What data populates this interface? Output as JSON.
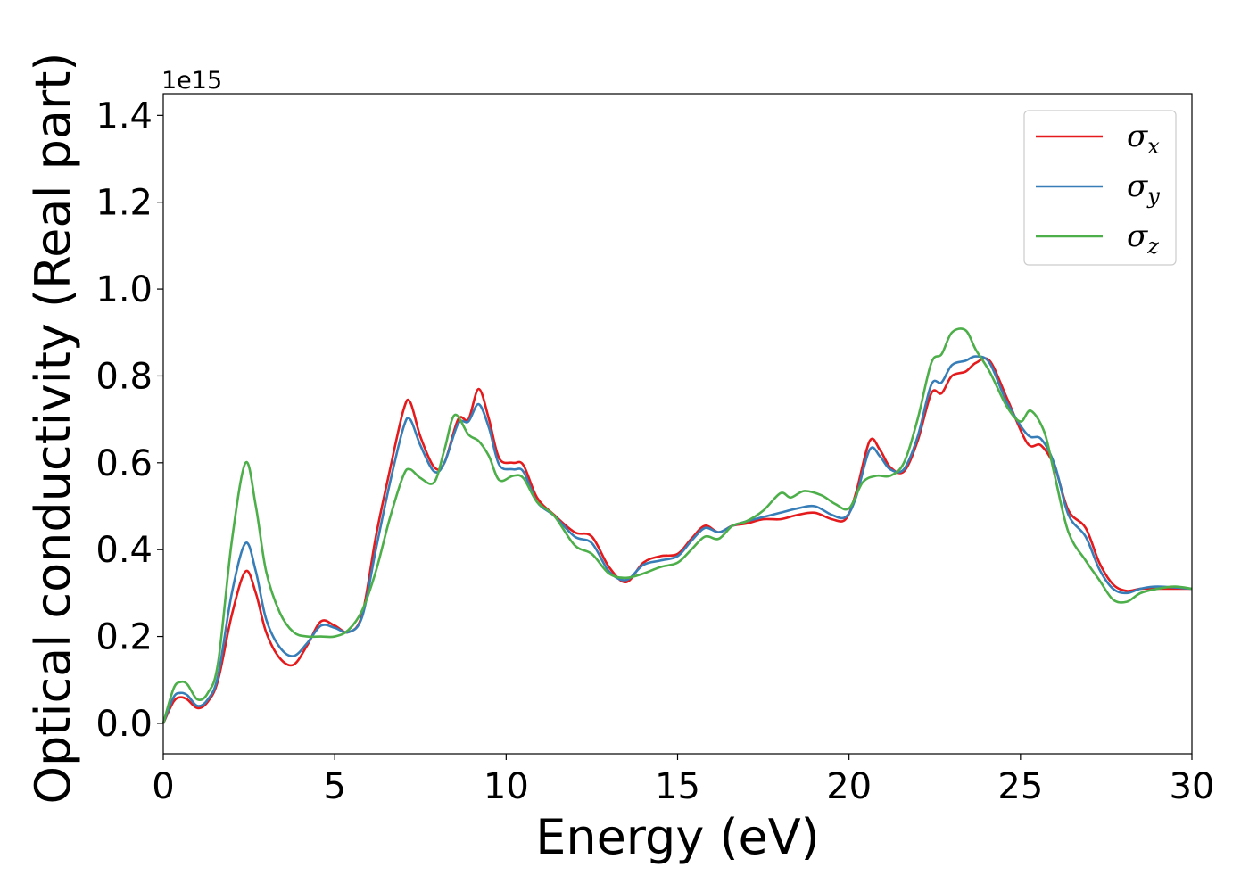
{
  "chart_data": {
    "type": "line",
    "title": "",
    "xlabel": "Energy (eV)",
    "ylabel": "Optical conductivity (Real part)",
    "y_offset_label": "1e15",
    "xlim": [
      0,
      30
    ],
    "ylim": [
      -0.07,
      1.45
    ],
    "xticks": [
      0,
      5,
      10,
      15,
      20,
      25,
      30
    ],
    "xtick_labels": [
      "0",
      "5",
      "10",
      "15",
      "20",
      "25",
      "30"
    ],
    "yticks": [
      0.0,
      0.2,
      0.4,
      0.6,
      0.8,
      1.0,
      1.2,
      1.4
    ],
    "ytick_labels": [
      "0.0",
      "0.2",
      "0.4",
      "0.6",
      "0.8",
      "1.0",
      "1.2",
      "1.4"
    ],
    "grid": false,
    "legend_position": "top-right",
    "series": [
      {
        "name_base": "σ",
        "name_sub": "x",
        "color": "#e41a1c",
        "points": [
          [
            0,
            0
          ],
          [
            0.3,
            0.05
          ],
          [
            0.5,
            0.06
          ],
          [
            0.7,
            0.055
          ],
          [
            1.0,
            0.035
          ],
          [
            1.3,
            0.05
          ],
          [
            1.6,
            0.1
          ],
          [
            2.0,
            0.25
          ],
          [
            2.4,
            0.35
          ],
          [
            2.7,
            0.3
          ],
          [
            3.0,
            0.21
          ],
          [
            3.4,
            0.15
          ],
          [
            3.8,
            0.135
          ],
          [
            4.2,
            0.18
          ],
          [
            4.6,
            0.235
          ],
          [
            5.0,
            0.225
          ],
          [
            5.4,
            0.21
          ],
          [
            5.8,
            0.25
          ],
          [
            6.2,
            0.43
          ],
          [
            6.6,
            0.58
          ],
          [
            7.0,
            0.72
          ],
          [
            7.2,
            0.74
          ],
          [
            7.5,
            0.66
          ],
          [
            7.9,
            0.59
          ],
          [
            8.2,
            0.6
          ],
          [
            8.6,
            0.7
          ],
          [
            8.9,
            0.7
          ],
          [
            9.2,
            0.77
          ],
          [
            9.5,
            0.7
          ],
          [
            9.8,
            0.61
          ],
          [
            10.2,
            0.6
          ],
          [
            10.5,
            0.595
          ],
          [
            10.9,
            0.52
          ],
          [
            11.4,
            0.48
          ],
          [
            12.0,
            0.44
          ],
          [
            12.5,
            0.43
          ],
          [
            13.0,
            0.36
          ],
          [
            13.5,
            0.325
          ],
          [
            14.0,
            0.37
          ],
          [
            14.5,
            0.385
          ],
          [
            15.0,
            0.39
          ],
          [
            15.4,
            0.425
          ],
          [
            15.8,
            0.455
          ],
          [
            16.2,
            0.44
          ],
          [
            16.6,
            0.455
          ],
          [
            17.0,
            0.46
          ],
          [
            17.5,
            0.47
          ],
          [
            18.0,
            0.47
          ],
          [
            18.5,
            0.48
          ],
          [
            19.0,
            0.485
          ],
          [
            19.5,
            0.47
          ],
          [
            19.9,
            0.47
          ],
          [
            20.2,
            0.53
          ],
          [
            20.6,
            0.65
          ],
          [
            20.9,
            0.63
          ],
          [
            21.2,
            0.59
          ],
          [
            21.6,
            0.58
          ],
          [
            22.0,
            0.65
          ],
          [
            22.4,
            0.76
          ],
          [
            22.7,
            0.76
          ],
          [
            23.0,
            0.8
          ],
          [
            23.4,
            0.81
          ],
          [
            23.7,
            0.83
          ],
          [
            24.1,
            0.835
          ],
          [
            24.6,
            0.75
          ],
          [
            25.2,
            0.645
          ],
          [
            25.6,
            0.64
          ],
          [
            26.0,
            0.59
          ],
          [
            26.4,
            0.49
          ],
          [
            26.9,
            0.45
          ],
          [
            27.3,
            0.37
          ],
          [
            27.7,
            0.32
          ],
          [
            28.1,
            0.305
          ],
          [
            28.5,
            0.31
          ],
          [
            29.0,
            0.31
          ],
          [
            30,
            0.31
          ]
        ]
      },
      {
        "name_base": "σ",
        "name_sub": "y",
        "color": "#377eb8",
        "points": [
          [
            0,
            0
          ],
          [
            0.3,
            0.06
          ],
          [
            0.5,
            0.07
          ],
          [
            0.7,
            0.065
          ],
          [
            1.0,
            0.04
          ],
          [
            1.3,
            0.055
          ],
          [
            1.6,
            0.11
          ],
          [
            2.0,
            0.3
          ],
          [
            2.4,
            0.415
          ],
          [
            2.7,
            0.35
          ],
          [
            3.0,
            0.24
          ],
          [
            3.4,
            0.175
          ],
          [
            3.8,
            0.155
          ],
          [
            4.2,
            0.185
          ],
          [
            4.6,
            0.225
          ],
          [
            5.0,
            0.22
          ],
          [
            5.4,
            0.21
          ],
          [
            5.8,
            0.245
          ],
          [
            6.2,
            0.4
          ],
          [
            6.6,
            0.55
          ],
          [
            7.0,
            0.68
          ],
          [
            7.2,
            0.7
          ],
          [
            7.5,
            0.64
          ],
          [
            7.9,
            0.58
          ],
          [
            8.2,
            0.6
          ],
          [
            8.6,
            0.69
          ],
          [
            8.9,
            0.695
          ],
          [
            9.2,
            0.735
          ],
          [
            9.5,
            0.68
          ],
          [
            9.8,
            0.595
          ],
          [
            10.2,
            0.585
          ],
          [
            10.5,
            0.58
          ],
          [
            10.9,
            0.51
          ],
          [
            11.4,
            0.478
          ],
          [
            12.0,
            0.43
          ],
          [
            12.5,
            0.415
          ],
          [
            13.0,
            0.35
          ],
          [
            13.5,
            0.33
          ],
          [
            14.0,
            0.365
          ],
          [
            14.5,
            0.375
          ],
          [
            15.0,
            0.385
          ],
          [
            15.4,
            0.42
          ],
          [
            15.8,
            0.45
          ],
          [
            16.2,
            0.44
          ],
          [
            16.6,
            0.455
          ],
          [
            17.0,
            0.465
          ],
          [
            17.5,
            0.475
          ],
          [
            18.0,
            0.485
          ],
          [
            18.5,
            0.495
          ],
          [
            19.0,
            0.5
          ],
          [
            19.5,
            0.48
          ],
          [
            19.9,
            0.475
          ],
          [
            20.2,
            0.52
          ],
          [
            20.6,
            0.63
          ],
          [
            20.9,
            0.615
          ],
          [
            21.2,
            0.585
          ],
          [
            21.6,
            0.585
          ],
          [
            22.0,
            0.66
          ],
          [
            22.4,
            0.78
          ],
          [
            22.7,
            0.785
          ],
          [
            23.0,
            0.825
          ],
          [
            23.4,
            0.835
          ],
          [
            23.7,
            0.845
          ],
          [
            24.1,
            0.83
          ],
          [
            24.6,
            0.74
          ],
          [
            25.2,
            0.665
          ],
          [
            25.6,
            0.655
          ],
          [
            26.0,
            0.595
          ],
          [
            26.4,
            0.48
          ],
          [
            26.9,
            0.43
          ],
          [
            27.3,
            0.355
          ],
          [
            27.7,
            0.31
          ],
          [
            28.1,
            0.3
          ],
          [
            28.5,
            0.31
          ],
          [
            29.0,
            0.315
          ],
          [
            30,
            0.31
          ]
        ]
      },
      {
        "name_base": "σ",
        "name_sub": "z",
        "color": "#4daf4a",
        "points": [
          [
            0,
            0
          ],
          [
            0.3,
            0.08
          ],
          [
            0.5,
            0.095
          ],
          [
            0.7,
            0.09
          ],
          [
            1.0,
            0.055
          ],
          [
            1.3,
            0.07
          ],
          [
            1.6,
            0.14
          ],
          [
            2.0,
            0.42
          ],
          [
            2.4,
            0.6
          ],
          [
            2.7,
            0.5
          ],
          [
            3.0,
            0.35
          ],
          [
            3.4,
            0.255
          ],
          [
            3.8,
            0.21
          ],
          [
            4.2,
            0.2
          ],
          [
            4.6,
            0.2
          ],
          [
            5.0,
            0.2
          ],
          [
            5.4,
            0.215
          ],
          [
            5.8,
            0.26
          ],
          [
            6.2,
            0.35
          ],
          [
            6.6,
            0.47
          ],
          [
            7.0,
            0.57
          ],
          [
            7.2,
            0.585
          ],
          [
            7.5,
            0.565
          ],
          [
            7.9,
            0.555
          ],
          [
            8.2,
            0.63
          ],
          [
            8.5,
            0.71
          ],
          [
            8.9,
            0.665
          ],
          [
            9.2,
            0.65
          ],
          [
            9.5,
            0.615
          ],
          [
            9.8,
            0.56
          ],
          [
            10.2,
            0.57
          ],
          [
            10.5,
            0.565
          ],
          [
            10.9,
            0.51
          ],
          [
            11.4,
            0.478
          ],
          [
            12.0,
            0.41
          ],
          [
            12.5,
            0.39
          ],
          [
            13.0,
            0.345
          ],
          [
            13.5,
            0.335
          ],
          [
            14.0,
            0.345
          ],
          [
            14.5,
            0.36
          ],
          [
            15.0,
            0.37
          ],
          [
            15.4,
            0.4
          ],
          [
            15.8,
            0.43
          ],
          [
            16.2,
            0.425
          ],
          [
            16.6,
            0.455
          ],
          [
            17.0,
            0.465
          ],
          [
            17.5,
            0.49
          ],
          [
            18.0,
            0.53
          ],
          [
            18.3,
            0.52
          ],
          [
            18.7,
            0.535
          ],
          [
            19.2,
            0.525
          ],
          [
            19.6,
            0.505
          ],
          [
            20.0,
            0.495
          ],
          [
            20.4,
            0.555
          ],
          [
            20.8,
            0.57
          ],
          [
            21.2,
            0.57
          ],
          [
            21.6,
            0.6
          ],
          [
            22.0,
            0.7
          ],
          [
            22.4,
            0.83
          ],
          [
            22.7,
            0.85
          ],
          [
            23.0,
            0.9
          ],
          [
            23.4,
            0.905
          ],
          [
            23.7,
            0.86
          ],
          [
            24.1,
            0.81
          ],
          [
            24.6,
            0.73
          ],
          [
            25.0,
            0.695
          ],
          [
            25.3,
            0.72
          ],
          [
            25.7,
            0.67
          ],
          [
            26.0,
            0.57
          ],
          [
            26.4,
            0.44
          ],
          [
            26.9,
            0.375
          ],
          [
            27.3,
            0.33
          ],
          [
            27.7,
            0.285
          ],
          [
            28.1,
            0.28
          ],
          [
            28.5,
            0.3
          ],
          [
            29.0,
            0.31
          ],
          [
            29.5,
            0.315
          ],
          [
            30,
            0.31
          ]
        ]
      }
    ]
  }
}
